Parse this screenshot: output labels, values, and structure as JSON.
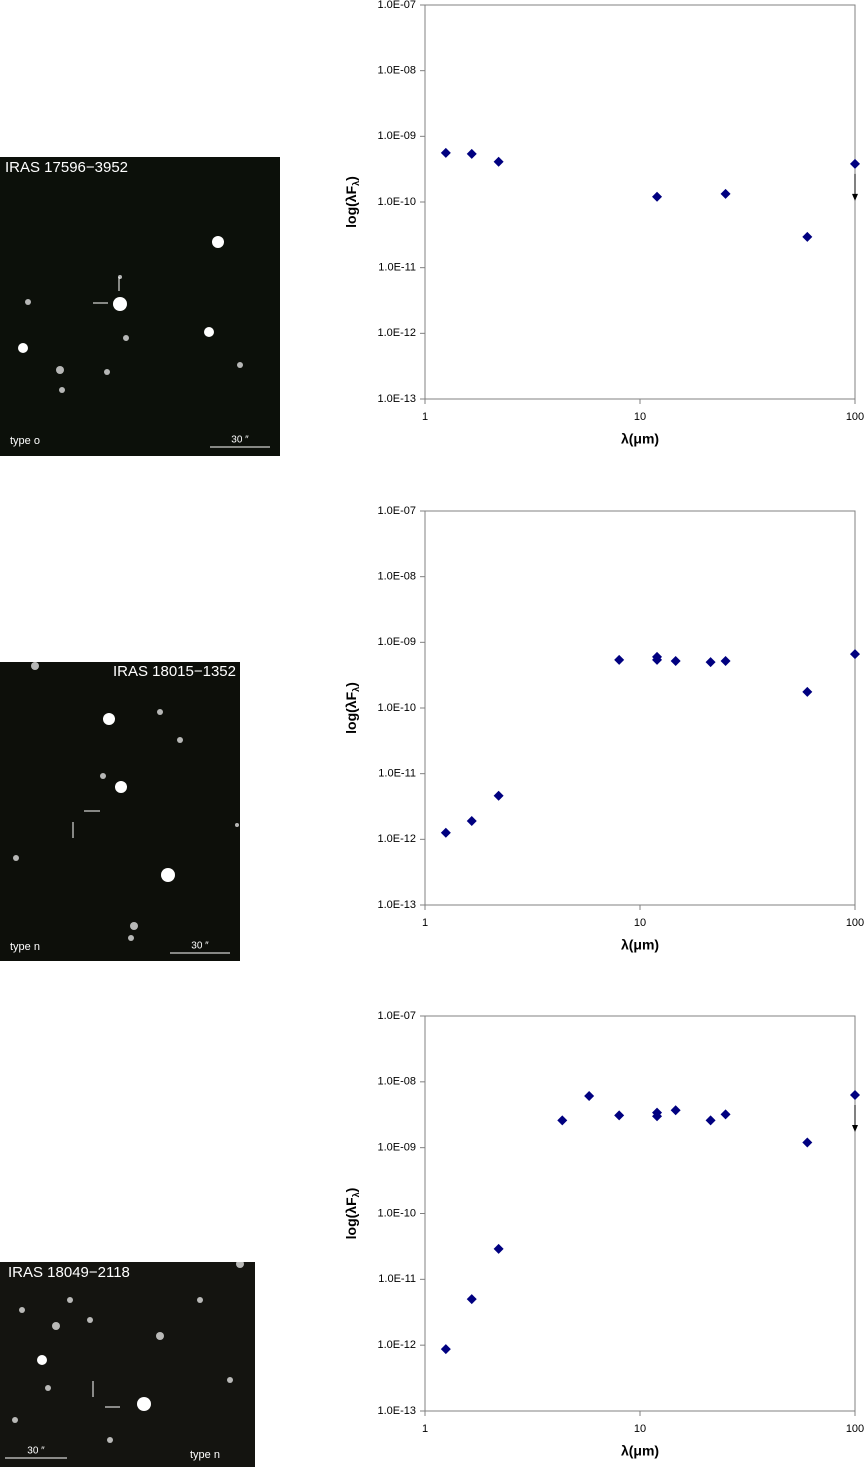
{
  "chart_data": [
    {
      "type": "scatter",
      "xscale": "log",
      "yscale": "log",
      "marker": "diamond",
      "color": "#000080",
      "x": [
        1.25,
        1.65,
        2.2,
        12,
        25,
        60,
        100
      ],
      "values": [
        5.6e-10,
        5.4e-10,
        4.1e-10,
        1.2e-10,
        1.33e-10,
        2.95e-11,
        3.8e-10
      ],
      "upper_limit": [
        false,
        false,
        false,
        false,
        false,
        false,
        true
      ],
      "xlim": [
        1,
        100
      ],
      "ylim": [
        1e-13,
        1e-07
      ],
      "xticks": [
        1,
        10,
        100
      ],
      "yticks": [
        {
          "value": 1e-13,
          "label": "1.0E-13"
        },
        {
          "value": 1e-12,
          "label": "1.0E-12"
        },
        {
          "value": 1e-11,
          "label": "1.0E-11"
        },
        {
          "value": 1e-10,
          "label": "1.0E-10"
        },
        {
          "value": 1e-09,
          "label": "1.0E-09"
        },
        {
          "value": 1e-08,
          "label": "1.0E-08"
        },
        {
          "value": 1e-07,
          "label": "1.0E-07"
        }
      ],
      "xlabel": "λ(μm)",
      "ylabel": [
        "log(λF",
        "λ",
        ")"
      ]
    },
    {
      "type": "scatter",
      "xscale": "log",
      "yscale": "log",
      "marker": "diamond",
      "color": "#000080",
      "x": [
        1.25,
        1.65,
        2.2,
        8,
        12,
        12,
        14.65,
        21.3,
        25,
        60,
        100
      ],
      "values": [
        1.26e-12,
        1.9e-12,
        4.6e-12,
        5.4e-10,
        6e-10,
        5.4e-10,
        5.2e-10,
        5e-10,
        5.2e-10,
        1.76e-10,
        6.6e-10
      ],
      "upper_limit": [
        false,
        false,
        false,
        false,
        false,
        false,
        false,
        false,
        false,
        false,
        false
      ],
      "xlim": [
        1,
        100
      ],
      "ylim": [
        1e-13,
        1e-07
      ],
      "xticks": [
        1,
        10,
        100
      ],
      "yticks": [
        {
          "value": 1e-13,
          "label": "1.0E-13"
        },
        {
          "value": 1e-12,
          "label": "1.0E-12"
        },
        {
          "value": 1e-11,
          "label": "1.0E-11"
        },
        {
          "value": 1e-10,
          "label": "1.0E-10"
        },
        {
          "value": 1e-09,
          "label": "1.0E-09"
        },
        {
          "value": 1e-08,
          "label": "1.0E-08"
        },
        {
          "value": 1e-07,
          "label": "1.0E-07"
        }
      ],
      "xlabel": "λ(μm)",
      "ylabel": [
        "log(λF",
        "λ",
        ")"
      ]
    },
    {
      "type": "scatter",
      "xscale": "log",
      "yscale": "log",
      "marker": "diamond",
      "color": "#000080",
      "x": [
        1.25,
        1.65,
        2.2,
        4.35,
        5.8,
        8,
        12,
        12,
        14.65,
        21.3,
        25,
        60,
        100
      ],
      "values": [
        8.7e-13,
        5e-12,
        2.9e-11,
        2.6e-09,
        6.1e-09,
        3.1e-09,
        3.4e-09,
        3e-09,
        3.7e-09,
        2.6e-09,
        3.2e-09,
        1.2e-09,
        6.3e-09
      ],
      "upper_limit": [
        false,
        false,
        false,
        false,
        false,
        false,
        false,
        false,
        false,
        false,
        false,
        false,
        true
      ],
      "xlim": [
        1,
        100
      ],
      "ylim": [
        1e-13,
        1e-07
      ],
      "xticks": [
        1,
        10,
        100
      ],
      "yticks": [
        {
          "value": 1e-13,
          "label": "1.0E-13"
        },
        {
          "value": 1e-12,
          "label": "1.0E-12"
        },
        {
          "value": 1e-11,
          "label": "1.0E-11"
        },
        {
          "value": 1e-10,
          "label": "1.0E-10"
        },
        {
          "value": 1e-09,
          "label": "1.0E-09"
        },
        {
          "value": 1e-08,
          "label": "1.0E-08"
        },
        {
          "value": 1e-07,
          "label": "1.0E-07"
        }
      ],
      "xlabel": "λ(μm)",
      "ylabel": [
        "log(λF",
        "λ",
        ")"
      ]
    }
  ],
  "images": [
    {
      "label": "IRAS 17596−3952",
      "type": "type o",
      "scale": "30 ″"
    },
    {
      "label": "IRAS 18015−1352",
      "type": "type n",
      "scale": "30 ″"
    },
    {
      "label": "IRAS 18049−2118",
      "type": "type n",
      "scale": "30 ″"
    }
  ]
}
